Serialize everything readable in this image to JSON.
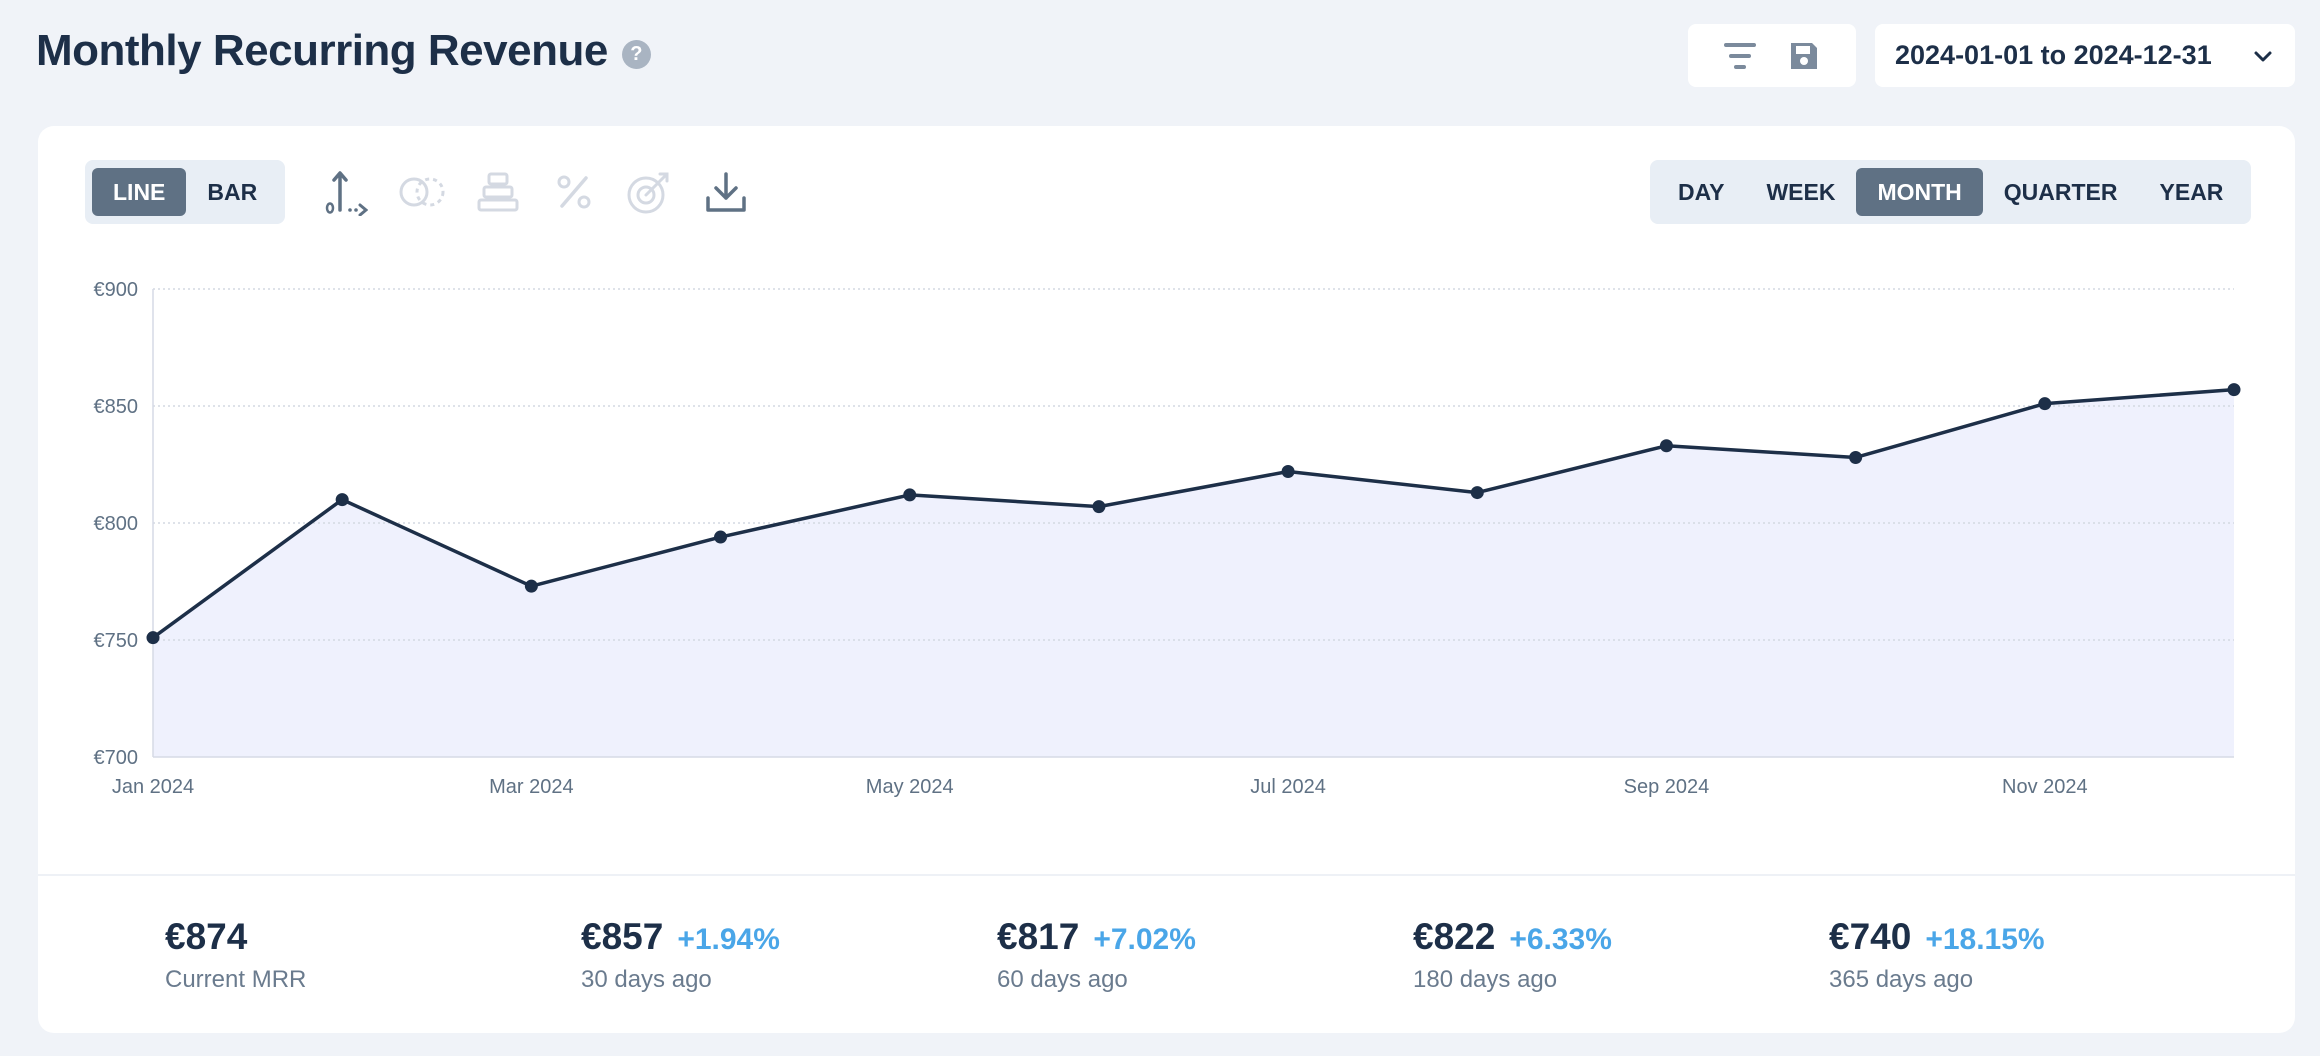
{
  "header": {
    "title": "Monthly Recurring Revenue",
    "help_icon": "question-circle-icon",
    "help_glyph": "?"
  },
  "toolbar": {
    "filter_icon": "filter-icon",
    "save_icon": "save-icon",
    "date_range": "2024-01-01 to 2024-12-31",
    "date_range_icon": "chevron-down-icon"
  },
  "chart_type": {
    "options": [
      "LINE",
      "BAR"
    ],
    "selected": "LINE"
  },
  "chart_tools": [
    {
      "name": "axis-icon",
      "enabled": true
    },
    {
      "name": "compare-icon",
      "enabled": false
    },
    {
      "name": "stack-icon",
      "enabled": false
    },
    {
      "name": "percent-icon",
      "enabled": false
    },
    {
      "name": "goal-icon",
      "enabled": false
    },
    {
      "name": "download-icon",
      "enabled": true
    }
  ],
  "period": {
    "options": [
      "DAY",
      "WEEK",
      "MONTH",
      "QUARTER",
      "YEAR"
    ],
    "selected": "MONTH"
  },
  "colors": {
    "line": "#1d2f48",
    "fill": "#eff1fd",
    "grid": "#d4d9e2",
    "accent_change": "#4aa6e8",
    "active_segment": "#5f7184"
  },
  "chart_data": {
    "type": "line",
    "title": "Monthly Recurring Revenue",
    "x": [
      "Jan 2024",
      "Feb 2024",
      "Mar 2024",
      "Apr 2024",
      "May 2024",
      "Jun 2024",
      "Jul 2024",
      "Aug 2024",
      "Sep 2024",
      "Oct 2024",
      "Nov 2024",
      "Dec 2024"
    ],
    "x_tick_labels": [
      "Jan 2024",
      "",
      "Mar 2024",
      "",
      "May 2024",
      "",
      "Jul 2024",
      "",
      "Sep 2024",
      "",
      "Nov 2024",
      ""
    ],
    "series": [
      {
        "name": "MRR",
        "values": [
          751,
          810,
          773,
          794,
          812,
          807,
          822,
          813,
          833,
          828,
          851,
          857
        ]
      }
    ],
    "ylim": [
      700,
      900
    ],
    "y_ticks": [
      700,
      750,
      800,
      850,
      900
    ],
    "y_tick_labels": [
      "€700",
      "€750",
      "€800",
      "€850",
      "€900"
    ],
    "area_fill": true,
    "grid": true,
    "legend": "none",
    "xlabel": "",
    "ylabel": ""
  },
  "stats": [
    {
      "value": "€874",
      "change": "",
      "label": "Current MRR"
    },
    {
      "value": "€857",
      "change": "+1.94%",
      "label": "30 days ago"
    },
    {
      "value": "€817",
      "change": "+7.02%",
      "label": "60 days ago"
    },
    {
      "value": "€822",
      "change": "+6.33%",
      "label": "180 days ago"
    },
    {
      "value": "€740",
      "change": "+18.15%",
      "label": "365 days ago"
    }
  ]
}
